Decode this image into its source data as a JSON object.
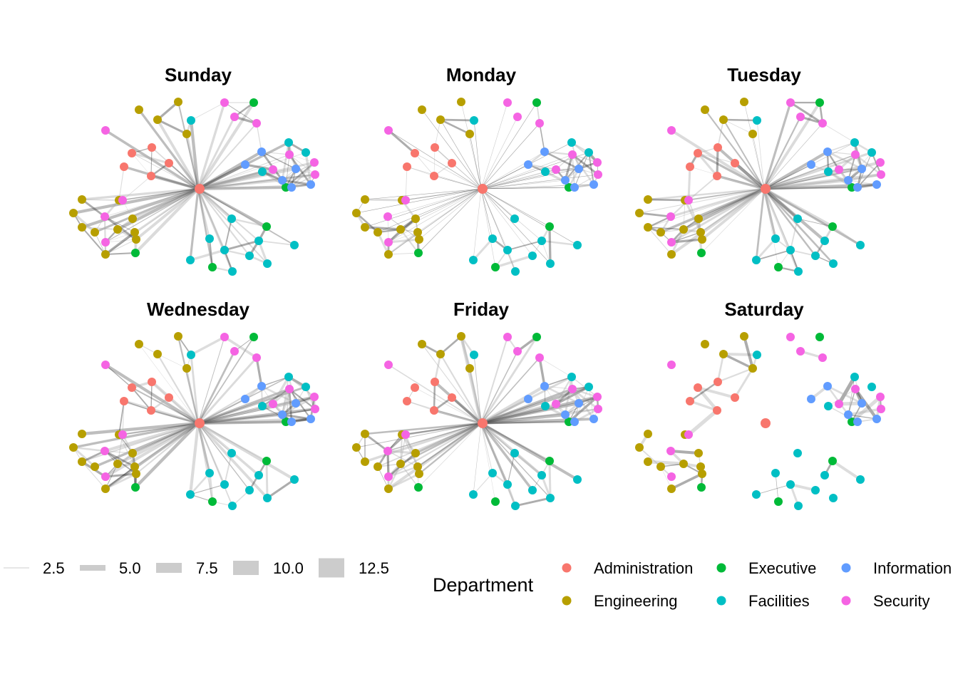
{
  "facets": [
    "Sunday",
    "Monday",
    "Tuesday",
    "Wednesday",
    "Friday",
    "Saturday"
  ],
  "width_legend": {
    "values": [
      "2.5",
      "5.0",
      "7.5",
      "10.0",
      "12.5"
    ],
    "color": "#cccccc"
  },
  "department_legend": {
    "title": "Department",
    "items": [
      {
        "label": "Administration",
        "color": "#F8766D"
      },
      {
        "label": "Engineering",
        "color": "#B79F00"
      },
      {
        "label": "Executive",
        "color": "#00BA38"
      },
      {
        "label": "Facilities",
        "color": "#00BFC4"
      },
      {
        "label": "Information",
        "color": "#619CFF"
      },
      {
        "label": "Security",
        "color": "#F564E3"
      }
    ]
  }
}
